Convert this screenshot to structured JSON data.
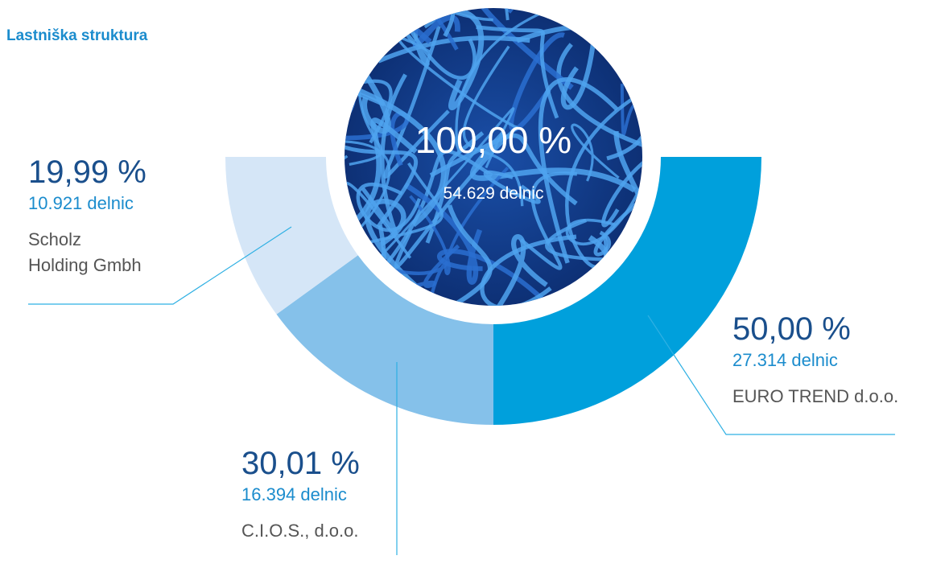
{
  "chart_data": {
    "type": "pie",
    "title": "Lastniška struktura",
    "center_label": "100,00 %",
    "center_sublabel": "54.629 delnic",
    "categories": [
      "EURO TREND d.o.o.",
      "C.I.O.S., d.o.o.",
      "Scholz\nHolding Gmbh"
    ],
    "values": [
      50.0,
      30.01,
      19.99
    ],
    "value_labels": [
      "50,00 %",
      "30,01 %",
      "19,99 %"
    ],
    "share_labels": [
      "27.314 delnic",
      "16.394 delnic",
      "10.921 delnic"
    ],
    "colors": [
      "#00a0dc",
      "#85c1ea",
      "#d5e6f7"
    ]
  }
}
